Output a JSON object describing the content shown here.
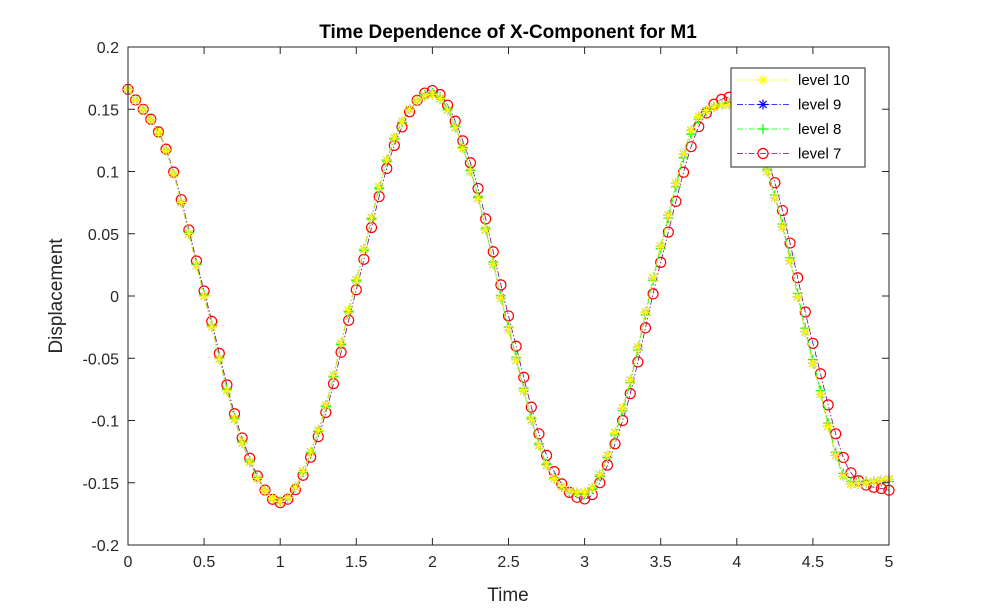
{
  "chart_data": {
    "type": "line",
    "title": "Time Dependence of X-Component for M1",
    "xlabel": "Time",
    "ylabel": "Displacement",
    "xlim": [
      0,
      5
    ],
    "ylim": [
      -0.2,
      0.2
    ],
    "xticks": [
      0,
      0.5,
      1,
      1.5,
      2,
      2.5,
      3,
      3.5,
      4,
      4.5,
      5
    ],
    "xtick_labels": [
      "0",
      "0.5",
      "1",
      "1.5",
      "2",
      "2.5",
      "3",
      "3.5",
      "4",
      "4.5",
      "5"
    ],
    "yticks": [
      0.2,
      0.15,
      0.1,
      0.05,
      0,
      -0.05,
      -0.1,
      -0.15,
      -0.2
    ],
    "ytick_labels": [
      "0.2",
      "0.15",
      "0.1",
      "0.05",
      "0",
      "-0.05",
      "-0.1",
      "-0.15",
      "-0.2"
    ],
    "grid": false,
    "legend_position": "top-right",
    "series": [
      {
        "name": "level 10",
        "color": "#ffff00",
        "marker": "star",
        "linestyle": "dash-dot",
        "x": [
          0,
          0.25,
          0.5,
          0.75,
          1,
          1.25,
          1.5,
          1.75,
          2,
          2.25,
          2.5,
          2.75,
          3,
          3.25,
          3.5,
          3.75,
          4,
          4.25,
          4.5,
          4.75,
          5
        ],
        "y": [
          0.166,
          0.117,
          0.0,
          -0.118,
          -0.165,
          -0.108,
          0.013,
          0.127,
          0.162,
          0.1,
          -0.027,
          -0.136,
          -0.158,
          -0.09,
          0.04,
          0.144,
          0.154,
          0.079,
          -0.054,
          -0.151,
          -0.147
        ]
      },
      {
        "name": "level 9",
        "color": "#0000ff",
        "marker": "asterisk",
        "linestyle": "dash-dot",
        "x": [
          0,
          0.25,
          0.5,
          0.75,
          1,
          1.25,
          1.5,
          1.75,
          2,
          2.25,
          2.5,
          2.75,
          3,
          3.25,
          3.5,
          3.75,
          4,
          4.25,
          4.5,
          4.75,
          5
        ],
        "y": [
          0.166,
          0.117,
          0.0,
          -0.118,
          -0.165,
          -0.108,
          0.013,
          0.127,
          0.162,
          0.1,
          -0.027,
          -0.136,
          -0.158,
          -0.09,
          0.04,
          0.144,
          0.154,
          0.079,
          -0.054,
          -0.151,
          -0.147
        ]
      },
      {
        "name": "level 8",
        "color": "#00ff00",
        "marker": "plus",
        "linestyle": "dash-dot",
        "x": [
          0,
          0.25,
          0.5,
          0.75,
          1,
          1.25,
          1.5,
          1.75,
          2,
          2.25,
          2.5,
          2.75,
          3,
          3.25,
          3.5,
          3.75,
          4,
          4.25,
          4.5,
          4.75,
          5
        ],
        "y": [
          0.166,
          0.117,
          0.001,
          -0.117,
          -0.165,
          -0.109,
          0.012,
          0.126,
          0.163,
          0.101,
          -0.025,
          -0.135,
          -0.159,
          -0.092,
          0.038,
          0.142,
          0.155,
          0.081,
          -0.051,
          -0.149,
          -0.149
        ]
      },
      {
        "name": "level 7",
        "color": "#ff0000",
        "linecolor": "#7f007f",
        "marker": "circle",
        "linestyle": "dash-dot",
        "x": [
          0,
          0.25,
          0.5,
          0.75,
          1,
          1.25,
          1.5,
          1.75,
          2,
          2.25,
          2.5,
          2.75,
          3,
          3.25,
          3.5,
          3.75,
          4,
          4.25,
          4.5,
          4.75,
          5
        ],
        "y": [
          0.166,
          0.118,
          0.004,
          -0.114,
          -0.166,
          -0.113,
          0.005,
          0.121,
          0.165,
          0.107,
          -0.016,
          -0.128,
          -0.163,
          -0.1,
          0.027,
          0.136,
          0.16,
          0.091,
          -0.038,
          -0.142,
          -0.156
        ]
      }
    ]
  }
}
